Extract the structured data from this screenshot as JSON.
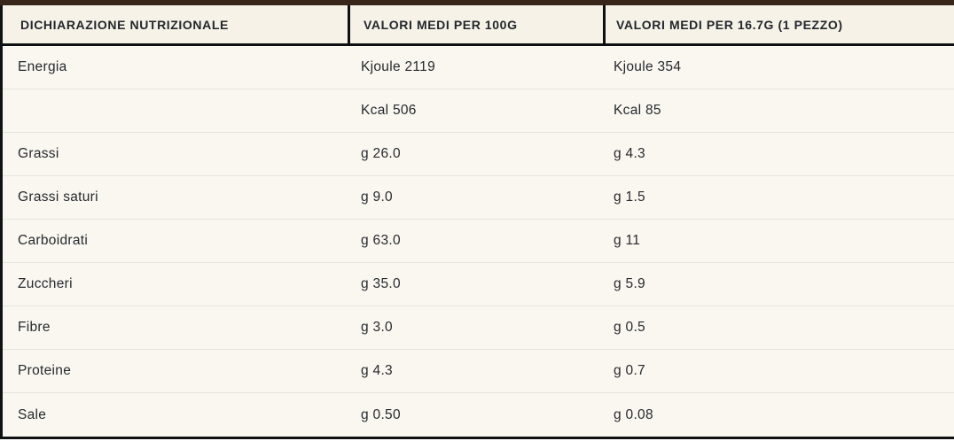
{
  "table": {
    "title": "DICHIARAZIONE NUTRIZIONALE",
    "headers": [
      {
        "label": "DICHIARAZIONE NUTRIZIONALE"
      },
      {
        "label": "VALORI MEDI PER 100G"
      },
      {
        "label": "VALORI MEDI PER 16.7G (1 PEZZO)"
      }
    ],
    "rows": [
      {
        "nutrient": "Energia",
        "per_100g": "Kjoule 2119",
        "per_piece": "Kjoule 354"
      },
      {
        "nutrient": "",
        "per_100g": "Kcal 506",
        "per_piece": "Kcal 85"
      },
      {
        "nutrient": "Grassi",
        "per_100g": "g 26.0",
        "per_piece": "g 4.3"
      },
      {
        "nutrient": "Grassi saturi",
        "per_100g": "g 9.0",
        "per_piece": "g 1.5"
      },
      {
        "nutrient": "Carboidrati",
        "per_100g": "g 63.0",
        "per_piece": "g 11"
      },
      {
        "nutrient": "Zuccheri",
        "per_100g": "g 35.0",
        "per_piece": "g 5.9"
      },
      {
        "nutrient": "Fibre",
        "per_100g": "g 3.0",
        "per_piece": "g 0.5"
      },
      {
        "nutrient": "Proteine",
        "per_100g": "g 4.3",
        "per_piece": "g 0.7"
      },
      {
        "nutrient": "Sale",
        "per_100g": "g 0.50",
        "per_piece": "g 0.08"
      }
    ],
    "colors": {
      "top_bar": "#38261b",
      "header_bg": "#f6f2e8",
      "row_bg": "#faf7f0",
      "border_dark": "#101113",
      "separator": "#e3e4e1",
      "text": "#26292e"
    }
  }
}
